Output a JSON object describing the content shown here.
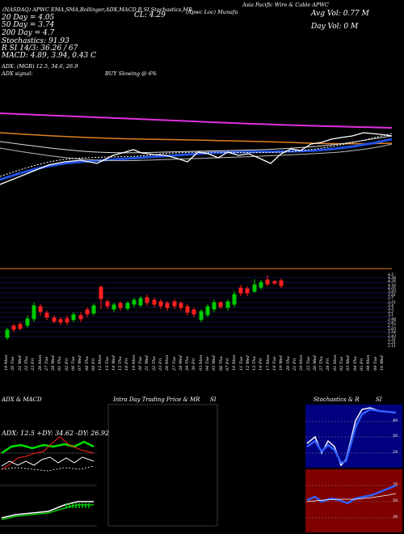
{
  "header": {
    "source": "(NASDAQ)",
    "ticker": "APWC",
    "title_tail": "EMA,SMA,Bollinger,ADX,MACD,R",
    "indicators_tail": "SI,Stochastics,MR",
    "close_label": "CL: 4.29",
    "company": "Asia Pacific Wire & Cable APWC",
    "company_short": "(Apwc Loc) Munafa",
    "avg_vol": "Avg Vol: 0.77 M",
    "day_vol": "Day Vol: 0  M"
  },
  "stats": {
    "dma20": "20  Day  = 4.05",
    "dma50": "50  Day  = 3.74",
    "dma200": "200  Day  = 4.7",
    "stoch": "Stochastics: 91.93",
    "rsi": "R                   SI 14/3: 36.26  / 67",
    "macd": "MACD: 4.89,  3.94,  0.43 C",
    "adx": "ADX:                    (MGR) 12.5,  34.6,  26.9",
    "adx_signal_label": "ADX  signal:",
    "adx_signal_value": "BUY Slowing @ 6%"
  },
  "price_axis": [
    "4.5",
    "4.38",
    "4.26",
    "4.16",
    "4.05",
    "3.93",
    "3.81",
    "3.7",
    "3.51",
    "3.4",
    "3.3",
    "3.2",
    "3.1",
    "2.98",
    "2.87",
    "2.77",
    "2.65",
    "2.54",
    "2.43",
    "2.31",
    "2.21",
    "2.11"
  ],
  "dates": [
    "19 Mon",
    "20 Tue",
    "21 Wed",
    "22 Thu",
    "23 Fri",
    "26 Mon",
    "27 Tue",
    "28 Wed",
    "01 Thu",
    "02 Fri",
    "06 Tue",
    "07 Wed",
    "08 Thu",
    "09 Fri",
    "12 Mon",
    "13 Tue",
    "14 Wed",
    "15 Thu",
    "16 Fri",
    "19 Mon",
    "20 Tue",
    "21 Wed",
    "22 Thu",
    "23 Fri",
    "26 Mon",
    "27 Tue",
    "28 Wed",
    "29 Thu",
    "30 Fri",
    "03 Mon",
    "04 Tue",
    "05 Wed",
    "06 Thu",
    "07 Fri",
    "10 Mon",
    "11 Tue",
    "12 Wed",
    "13 Thu",
    "14 Fri",
    "17 Mon",
    "18 Tue",
    "19 Wed",
    "20 Thu",
    "21 Fri",
    "24 Mon",
    "25 Tue",
    "26 Wed",
    "27 Thu",
    "28 Fri",
    "01 Mon",
    "02 Tue",
    "03 Wed",
    "04 Thu",
    "05 Fri",
    "08 Mon",
    "09 Tue",
    "10 Wed"
  ],
  "panels": {
    "adx": {
      "title": "ADX  & MACD",
      "readout": "ADX: 12.5  +DY: 34.62  -DY: 26.92"
    },
    "intraday": {
      "title": "Intra  Day Trading Price  & MR",
      "title_tail": "SI"
    },
    "stoch": {
      "title": "Stochastics & R",
      "title_tail": "SI",
      "upper_ticks": [
        "80",
        "50",
        "20"
      ],
      "lower_ticks": [
        "70",
        "50",
        "30"
      ]
    }
  },
  "colors": {
    "bg": "#000000",
    "bull": "#00cc00",
    "bear": "#ff2020",
    "ma_orange": "#e08020",
    "ma_magenta": "#e030e0",
    "ma_blue": "#2050e0",
    "grid_blue": "#2020a0",
    "stoch_bg": "#000080",
    "rsi_bg": "#800000"
  }
}
